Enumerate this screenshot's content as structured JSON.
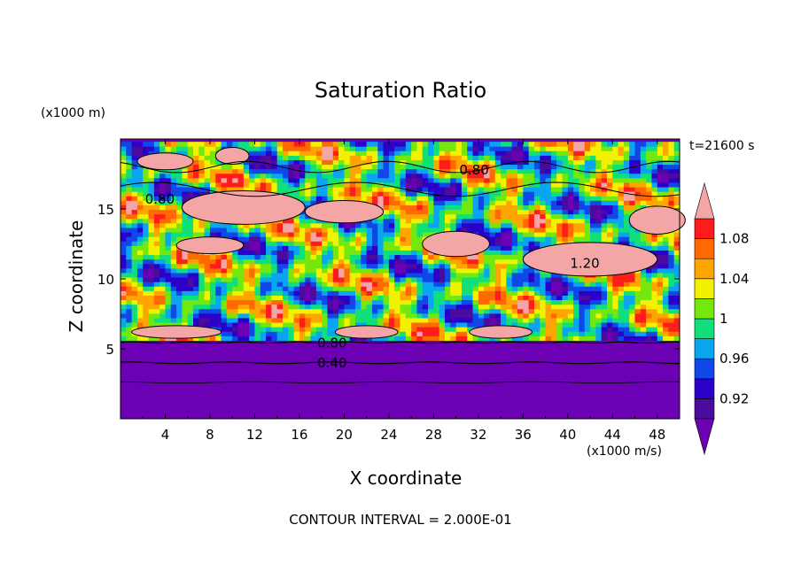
{
  "chart_data": {
    "type": "heatmap",
    "title": "Saturation Ratio",
    "xlabel": "X coordinate",
    "ylabel": "Z coordinate",
    "x_unit": "(x1000 m/s)",
    "y_unit": "(x1000 m)",
    "time_label": "t=21600 s",
    "footer": "CONTOUR INTERVAL = 2.000E-01",
    "xlim": [
      0,
      50
    ],
    "ylim": [
      0,
      20
    ],
    "x_ticks": [
      4,
      8,
      12,
      16,
      20,
      24,
      28,
      32,
      36,
      40,
      44,
      48
    ],
    "y_ticks": [
      5,
      10,
      15
    ],
    "colorbar": {
      "labels": [
        1.08,
        1.04,
        1,
        0.96,
        0.92
      ],
      "levels": [
        0.9,
        0.92,
        0.94,
        0.96,
        0.98,
        1.0,
        1.02,
        1.04,
        1.06,
        1.08,
        1.1
      ],
      "colors": [
        "#4b0b9e",
        "#2b00c8",
        "#0f48e6",
        "#0aa5f0",
        "#11e07a",
        "#74e80c",
        "#f2f200",
        "#ffa500",
        "#ff6a00",
        "#ff1c1c",
        "#f4a5a5"
      ],
      "under_color": "#6c00b4",
      "over_color": "#f4a5a5"
    },
    "contour_labels": [
      {
        "value": "0.80",
        "x": 2.2,
        "z": 15.7
      },
      {
        "value": "0.80",
        "x": 30.3,
        "z": 17.8
      },
      {
        "value": "1.20",
        "x": 40.2,
        "z": 11.1
      },
      {
        "value": "0.80",
        "x": 17.6,
        "z": 5.4
      },
      {
        "value": "0.40",
        "x": 17.6,
        "z": 4.0
      }
    ]
  }
}
